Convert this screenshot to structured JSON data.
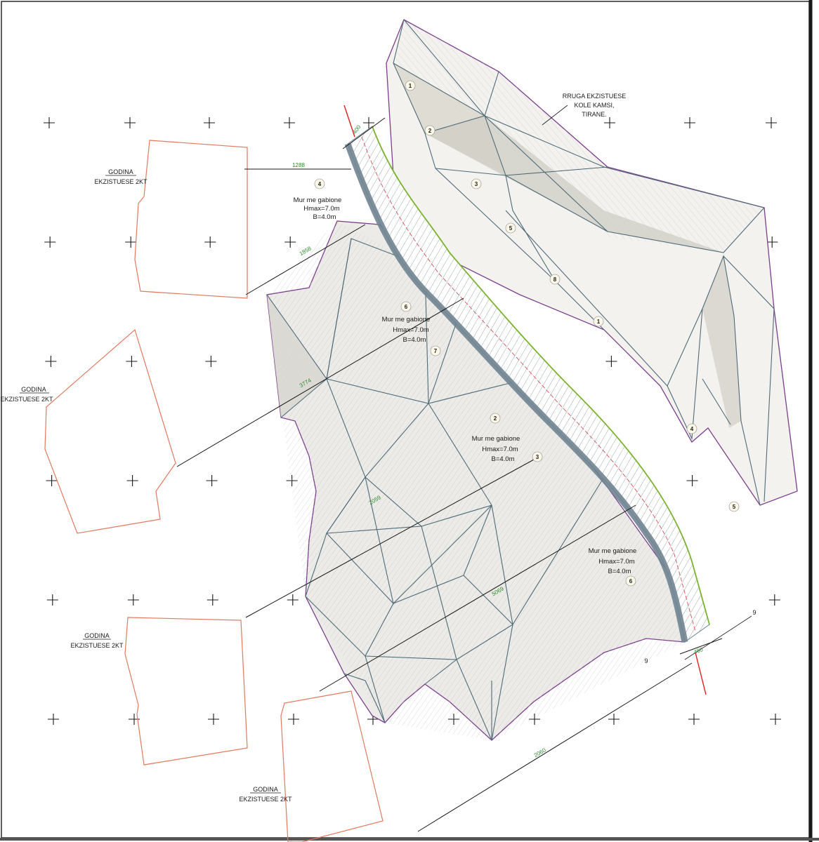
{
  "labels": {
    "road": [
      "RRUGA EKZISTUESE",
      "KOLE KAMSI,",
      "TIRANE."
    ],
    "buildings": [
      {
        "line1": "GODINA",
        "line2": "EKZISTUESE 2KT"
      },
      {
        "line1": "GODINA",
        "line2": "EKZISTUESE 2KT"
      },
      {
        "line1": "GODINA",
        "line2": "EKZISTUESE 2KT"
      },
      {
        "line1": "GODINA",
        "line2": "EKZISTUESE 2KT"
      }
    ],
    "walls": [
      {
        "line1": "Mur me gabione",
        "line2": "Hmax=7.0m",
        "line3": "B=4.0m"
      },
      {
        "line1": "Mur me gabione",
        "line2": "Hmax=7.0m",
        "line3": "B=4.0m"
      },
      {
        "line1": "Mur me gabione",
        "line2": "Hmax=7.0m",
        "line3": "B=4.0m"
      },
      {
        "line1": "Mur me gabione",
        "line2": "Hmax=7.0m",
        "line3": "B=4.0m"
      }
    ],
    "dimensions": [
      "1288",
      "1858",
      "3774",
      "2059",
      "5069",
      "2060",
      "400",
      "400"
    ],
    "section_marks": [
      "9",
      "9"
    ],
    "zone_numbers": [
      "1",
      "2",
      "3",
      "4",
      "5",
      "6",
      "7",
      "8"
    ]
  },
  "colors": {
    "background": "#ffffff",
    "boundary": "#7b3f8c",
    "triangulation": "#4f6b78",
    "hatch": "#9aa0a6",
    "wall": "#6f8490",
    "wall_edge": "#7bb32e",
    "section_line": "#e02020",
    "building_outline": "#e07a5f",
    "dimension_text": "#2e8b2e",
    "grid_cross": "#1a1a1a",
    "site_fill": "#ecebe7"
  }
}
